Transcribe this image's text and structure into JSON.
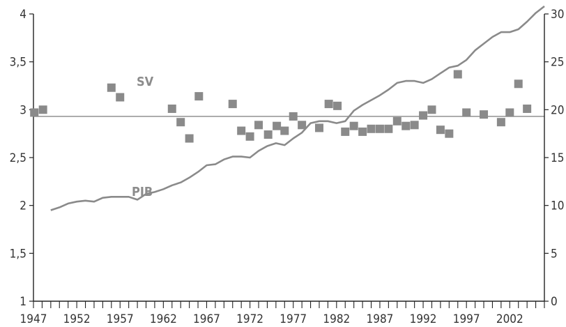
{
  "chart_data": {
    "type": "line+scatter",
    "title": "",
    "x_ticks": [
      "1947",
      "1952",
      "1957",
      "1962",
      "1967",
      "1972",
      "1977",
      "1982",
      "1987",
      "1992",
      "1997",
      "2002"
    ],
    "xlim": [
      1947,
      2006
    ],
    "left_axis": {
      "ylim": [
        1,
        4
      ],
      "ticks": [
        "1",
        "1,5",
        "2",
        "2,5",
        "3",
        "3,5",
        "4"
      ],
      "tick_values": [
        1,
        1.5,
        2,
        2.5,
        3,
        3.5,
        4
      ]
    },
    "right_axis": {
      "ylim": [
        0,
        30
      ],
      "ticks": [
        "0",
        "5",
        "10",
        "15",
        "20",
        "25",
        "30"
      ],
      "tick_values": [
        0,
        5,
        10,
        15,
        20,
        25,
        30
      ]
    },
    "reference_line_left_value": 2.93,
    "colors": {
      "line": "#8a8a8a",
      "markers": "#8a8a8a",
      "reference": "#9a9a9a",
      "axis": "#222222"
    },
    "series": [
      {
        "name": "SV",
        "axis": "left",
        "style": "square-markers",
        "points": [
          [
            1947.1,
            2.97
          ],
          [
            1948.1,
            3.0
          ],
          [
            1956.0,
            3.23
          ],
          [
            1957.0,
            3.13
          ],
          [
            1963.0,
            3.01
          ],
          [
            1964.0,
            2.87
          ],
          [
            1965.0,
            2.7
          ],
          [
            1966.1,
            3.14
          ],
          [
            1970.0,
            3.06
          ],
          [
            1971.0,
            2.78
          ],
          [
            1972.0,
            2.72
          ],
          [
            1973.0,
            2.84
          ],
          [
            1974.1,
            2.74
          ],
          [
            1975.1,
            2.83
          ],
          [
            1976.0,
            2.78
          ],
          [
            1977.0,
            2.93
          ],
          [
            1978.0,
            2.84
          ],
          [
            1980.0,
            2.81
          ],
          [
            1981.1,
            3.06
          ],
          [
            1982.1,
            3.04
          ],
          [
            1983.0,
            2.77
          ],
          [
            1984.0,
            2.83
          ],
          [
            1985.0,
            2.77
          ],
          [
            1986.0,
            2.8
          ],
          [
            1987.0,
            2.8
          ],
          [
            1988.0,
            2.8
          ],
          [
            1989.0,
            2.88
          ],
          [
            1990.0,
            2.83
          ],
          [
            1991.0,
            2.84
          ],
          [
            1992.0,
            2.94
          ],
          [
            1993.0,
            3.0
          ],
          [
            1994.0,
            2.79
          ],
          [
            1995.0,
            2.75
          ],
          [
            1996.0,
            3.37
          ],
          [
            1997.0,
            2.97
          ],
          [
            1999.0,
            2.95
          ],
          [
            2001.0,
            2.87
          ],
          [
            2002.0,
            2.97
          ],
          [
            2003.0,
            3.27
          ],
          [
            2004.0,
            3.01
          ]
        ]
      },
      {
        "name": "PIB",
        "axis": "left",
        "style": "line",
        "points": [
          [
            1949,
            1.95
          ],
          [
            1950,
            1.98
          ],
          [
            1951,
            2.02
          ],
          [
            1952,
            2.04
          ],
          [
            1953,
            2.05
          ],
          [
            1954,
            2.04
          ],
          [
            1955,
            2.08
          ],
          [
            1956,
            2.09
          ],
          [
            1957,
            2.09
          ],
          [
            1958,
            2.09
          ],
          [
            1959,
            2.06
          ],
          [
            1960,
            2.12
          ],
          [
            1961,
            2.14
          ],
          [
            1962,
            2.17
          ],
          [
            1963,
            2.21
          ],
          [
            1964,
            2.24
          ],
          [
            1965,
            2.29
          ],
          [
            1966,
            2.35
          ],
          [
            1967,
            2.42
          ],
          [
            1968,
            2.43
          ],
          [
            1969,
            2.48
          ],
          [
            1970,
            2.51
          ],
          [
            1971,
            2.51
          ],
          [
            1972,
            2.5
          ],
          [
            1973,
            2.57
          ],
          [
            1974,
            2.62
          ],
          [
            1975,
            2.65
          ],
          [
            1976,
            2.63
          ],
          [
            1977,
            2.7
          ],
          [
            1978,
            2.76
          ],
          [
            1979,
            2.86
          ],
          [
            1980,
            2.88
          ],
          [
            1981,
            2.88
          ],
          [
            1982,
            2.86
          ],
          [
            1983,
            2.88
          ],
          [
            1984,
            2.99
          ],
          [
            1985,
            3.05
          ],
          [
            1986,
            3.1
          ],
          [
            1987,
            3.15
          ],
          [
            1988,
            3.21
          ],
          [
            1989,
            3.28
          ],
          [
            1990,
            3.3
          ],
          [
            1991,
            3.3
          ],
          [
            1992,
            3.28
          ],
          [
            1993,
            3.32
          ],
          [
            1994,
            3.38
          ],
          [
            1995,
            3.44
          ],
          [
            1996,
            3.46
          ],
          [
            1997,
            3.52
          ],
          [
            1998,
            3.62
          ],
          [
            1999,
            3.69
          ],
          [
            2000,
            3.76
          ],
          [
            2001,
            3.81
          ],
          [
            2002,
            3.81
          ],
          [
            2003,
            3.84
          ],
          [
            2004,
            3.92
          ],
          [
            2005,
            4.01
          ],
          [
            2006,
            4.08
          ]
        ]
      }
    ]
  }
}
